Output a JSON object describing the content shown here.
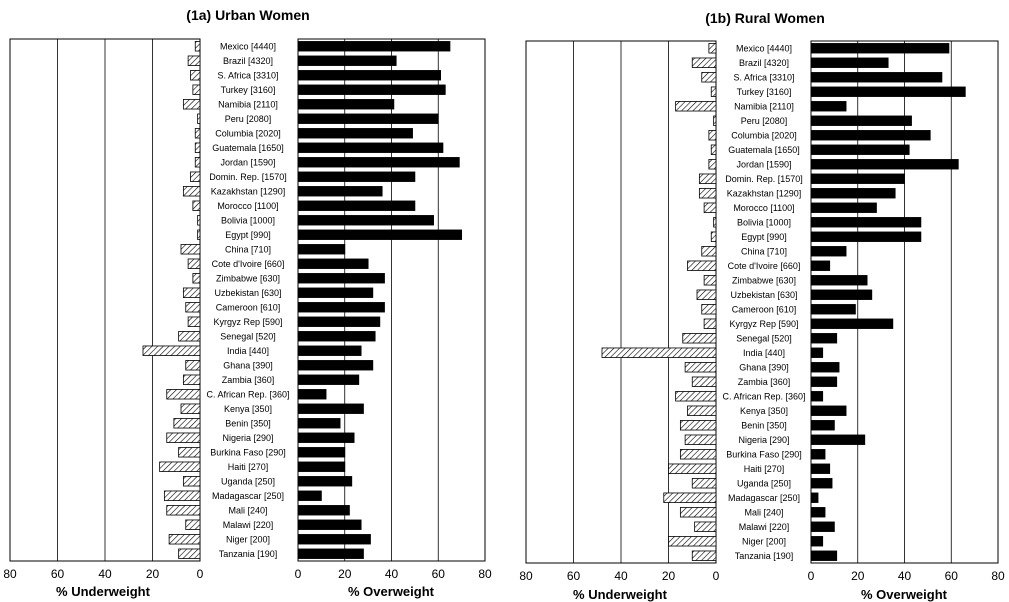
{
  "chart_data": [
    {
      "type": "bar",
      "title": "(1a) Urban Women",
      "categories": [
        "Mexico [4440]",
        "Brazil [4320]",
        "S. Africa [3310]",
        "Turkey [3160]",
        "Namibia [2110]",
        "Peru [2080]",
        "Columbia [2020]",
        "Guatemala [1650]",
        "Jordan [1590]",
        "Domin. Rep. [1570]",
        "Kazakhstan [1290]",
        "Morocco [1100]",
        "Bolivia [1000]",
        "Egypt [990]",
        "China [710]",
        "Cote d'Ivoire [660]",
        "Zimbabwe [630]",
        "Uzbekistan [630]",
        "Cameroon [610]",
        "Kyrgyz Rep [590]",
        "Senegal [520]",
        "India [440]",
        "Ghana [390]",
        "Zambia [360]",
        "C. African Rep. [360]",
        "Kenya [350]",
        "Benin [350]",
        "Nigeria [290]",
        "Burkina Faso [290]",
        "Haiti [270]",
        "Uganda [250]",
        "Madagascar [250]",
        "Mali [240]",
        "Malawi [220]",
        "Niger [200]",
        "Tanzania [190]"
      ],
      "series": [
        {
          "name": "% Underweight",
          "color": "#ffffff",
          "pattern": "diagonal-hatch",
          "values": [
            2,
            5,
            4,
            3,
            7,
            1,
            2,
            2,
            2,
            4,
            7,
            3,
            1,
            1,
            8,
            5,
            3,
            7,
            6,
            5,
            9,
            24,
            6,
            7,
            14,
            8,
            11,
            14,
            9,
            17,
            7,
            15,
            14,
            6,
            13,
            9
          ]
        },
        {
          "name": "% Overweight",
          "color": "#000000",
          "values": [
            65,
            42,
            61,
            63,
            41,
            60,
            49,
            62,
            69,
            50,
            36,
            50,
            58,
            70,
            20,
            30,
            37,
            32,
            37,
            35,
            33,
            27,
            32,
            26,
            12,
            28,
            18,
            24,
            20,
            20,
            23,
            10,
            22,
            27,
            31,
            28
          ]
        }
      ],
      "xlabel_left": "% Underweight",
      "xlabel_right": "% Overweight",
      "xlim_left": [
        80,
        0
      ],
      "xlim_right": [
        0,
        80
      ],
      "xticks_left": [
        80,
        60,
        40,
        20,
        0
      ],
      "xticks_right": [
        0,
        20,
        40,
        60,
        80
      ],
      "grid": true
    },
    {
      "type": "bar",
      "title": "(1b) Rural Women",
      "categories": [
        "Mexico [4440]",
        "Brazil [4320]",
        "S. Africa [3310]",
        "Turkey [3160]",
        "Namibia [2110]",
        "Peru [2080]",
        "Columbia [2020]",
        "Guatemala [1650]",
        "Jordan [1590]",
        "Domin. Rep. [1570]",
        "Kazakhstan [1290]",
        "Morocco [1100]",
        "Bolivia [1000]",
        "Egypt [990]",
        "China [710]",
        "Cote d'Ivoire [660]",
        "Zimbabwe [630]",
        "Uzbekistan [630]",
        "Cameroon [610]",
        "Kyrgyz Rep [590]",
        "Senegal [520]",
        "India [440]",
        "Ghana [390]",
        "Zambia [360]",
        "C. African Rep. [360]",
        "Kenya [350]",
        "Benin [350]",
        "Nigeria [290]",
        "Burkina Faso [290]",
        "Haiti [270]",
        "Uganda [250]",
        "Madagascar [250]",
        "Mali [240]",
        "Malawi [220]",
        "Niger [200]",
        "Tanzania [190]"
      ],
      "series": [
        {
          "name": "% Underweight",
          "color": "#ffffff",
          "pattern": "diagonal-hatch",
          "values": [
            3,
            10,
            6,
            2,
            17,
            1,
            3,
            2,
            3,
            7,
            7,
            5,
            1,
            2,
            6,
            12,
            5,
            8,
            6,
            5,
            14,
            48,
            13,
            10,
            17,
            12,
            15,
            13,
            15,
            20,
            10,
            22,
            15,
            9,
            20,
            10
          ]
        },
        {
          "name": "% Overweight",
          "color": "#000000",
          "values": [
            59,
            33,
            56,
            66,
            15,
            43,
            51,
            42,
            63,
            40,
            36,
            28,
            47,
            47,
            15,
            8,
            24,
            26,
            19,
            35,
            11,
            5,
            12,
            11,
            5,
            15,
            10,
            23,
            6,
            8,
            9,
            3,
            6,
            10,
            5,
            11
          ]
        }
      ],
      "xlabel_left": "% Underweight",
      "xlabel_right": "% Overweight",
      "xlim_left": [
        80,
        0
      ],
      "xlim_right": [
        0,
        80
      ],
      "xticks_left": [
        80,
        60,
        40,
        20,
        0
      ],
      "xticks_right": [
        0,
        20,
        40,
        60,
        80
      ],
      "grid": true
    }
  ]
}
